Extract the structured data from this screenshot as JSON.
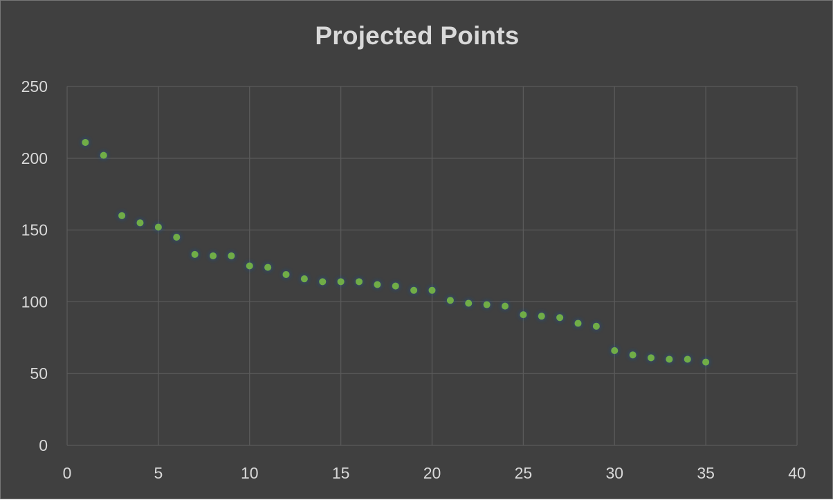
{
  "chart_data": {
    "type": "scatter",
    "title": "Projected Points",
    "xlabel": "",
    "ylabel": "",
    "xlim": [
      0,
      40
    ],
    "ylim": [
      0,
      250
    ],
    "xticks": [
      0,
      5,
      10,
      15,
      20,
      25,
      30,
      35,
      40
    ],
    "yticks": [
      0,
      50,
      100,
      150,
      200,
      250
    ],
    "grid": true,
    "legend": "none",
    "series": [
      {
        "x": [
          1,
          2,
          3,
          4,
          5,
          6,
          7,
          8,
          9,
          10,
          11,
          12,
          13,
          14,
          15,
          16,
          17,
          18,
          19,
          20,
          21,
          22,
          23,
          24,
          25,
          26,
          27,
          28,
          29,
          30,
          31,
          32,
          33,
          34,
          35
        ],
        "y": [
          211,
          202,
          160,
          155,
          152,
          145,
          133,
          132,
          132,
          125,
          124,
          119,
          116,
          114,
          114,
          114,
          112,
          111,
          108,
          108,
          101,
          99,
          98,
          97,
          91,
          90,
          89,
          85,
          83,
          66,
          63,
          61,
          60,
          60,
          58
        ]
      }
    ]
  },
  "colors": {
    "background": "#404040",
    "border": "#777777",
    "gridline": "#5a5a5a",
    "text": "#d9d9d9",
    "marker": "#70ad47",
    "marker_glow": "#1f4e8c"
  }
}
